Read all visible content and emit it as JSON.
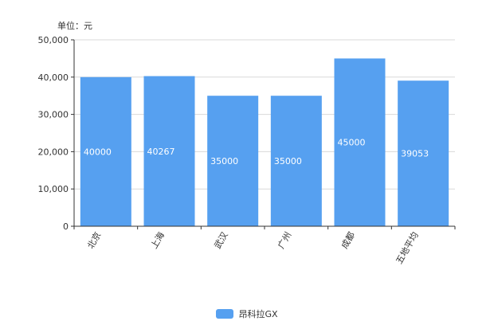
{
  "unit_label": "单位：元",
  "colors": {
    "bar": "#56a0f0",
    "grid": "#d9d9d9",
    "axis": "#333333",
    "text": "#333333",
    "label": "#ffffff"
  },
  "legend": {
    "label": "昂科拉GX"
  },
  "chart_data": {
    "type": "bar",
    "categories": [
      "北京",
      "上海",
      "武汉",
      "广州",
      "成都",
      "五地平均"
    ],
    "series": [
      {
        "name": "昂科拉GX",
        "values": [
          40000,
          40267,
          35000,
          35000,
          45000,
          39053
        ]
      }
    ],
    "data_labels": [
      "40000",
      "40267",
      "35000",
      "35000",
      "45000",
      "39053"
    ],
    "ylim": [
      0,
      50000
    ],
    "yticks": [
      "0",
      "10,000",
      "20,000",
      "30,000",
      "40,000",
      "50,000"
    ],
    "ytick_values": [
      0,
      10000,
      20000,
      30000,
      40000,
      50000
    ],
    "grid": true,
    "legend_position": "bottom"
  }
}
